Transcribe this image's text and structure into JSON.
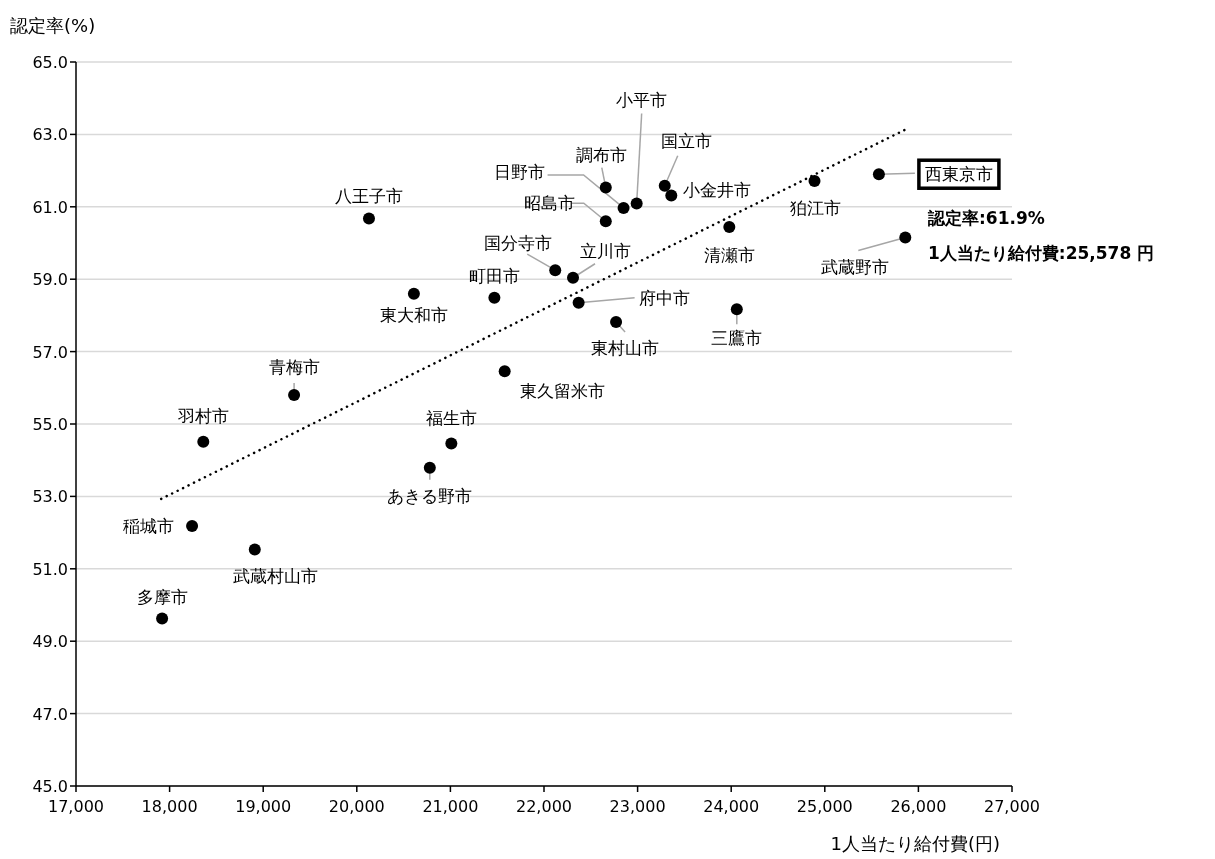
{
  "chart_data": {
    "type": "scatter",
    "xlabel": "1人当たり給付費(円)",
    "ylabel": "認定率(%)",
    "xlim": [
      17000,
      27000
    ],
    "ylim": [
      45,
      65
    ],
    "xticks": [
      {
        "value": 17000,
        "label": "17,000"
      },
      {
        "value": 18000,
        "label": "18,000"
      },
      {
        "value": 19000,
        "label": "19,000"
      },
      {
        "value": 20000,
        "label": "20,000"
      },
      {
        "value": 21000,
        "label": "21,000"
      },
      {
        "value": 22000,
        "label": "22,000"
      },
      {
        "value": 23000,
        "label": "23,000"
      },
      {
        "value": 24000,
        "label": "24,000"
      },
      {
        "value": 25000,
        "label": "25,000"
      },
      {
        "value": 26000,
        "label": "26,000"
      },
      {
        "value": 27000,
        "label": "27,000"
      }
    ],
    "yticks": [
      {
        "value": 45,
        "label": "45.0"
      },
      {
        "value": 47,
        "label": "47.0"
      },
      {
        "value": 49,
        "label": "49.0"
      },
      {
        "value": 51,
        "label": "51.0"
      },
      {
        "value": 53,
        "label": "53.0"
      },
      {
        "value": 55,
        "label": "55.0"
      },
      {
        "value": 57,
        "label": "57.0"
      },
      {
        "value": 59,
        "label": "59.0"
      },
      {
        "value": 61,
        "label": "61.0"
      },
      {
        "value": 63,
        "label": "63.0"
      },
      {
        "value": 65,
        "label": "65.0"
      }
    ],
    "grid": "y",
    "marker": "circle",
    "x": [
      20130,
      20610,
      21470,
      19330,
      21580,
      18360,
      21010,
      20780,
      18240,
      18910,
      17920,
      22660,
      22850,
      22990,
      22660,
      23290,
      23360,
      22120,
      22310,
      22370,
      22770,
      23980,
      24060,
      24890,
      25578,
      25860
    ],
    "series": [
      {
        "color": "#000000",
        "values": [
          60.68,
          58.6,
          58.49,
          55.8,
          56.46,
          54.51,
          54.46,
          53.79,
          52.18,
          51.53,
          49.63,
          61.53,
          60.97,
          61.09,
          60.6,
          61.58,
          61.31,
          59.25,
          59.04,
          58.35,
          57.82,
          60.44,
          58.17,
          61.71,
          61.9,
          60.15
        ]
      },
      {
        "type": "line",
        "color": "#000000",
        "line_style": "dotted",
        "marker": "none",
        "x": [
          17910,
          25850
        ],
        "values": [
          52.93,
          63.12
        ]
      }
    ],
    "annotations": [
      {
        "text": "八王子市",
        "x": 20130,
        "y": 60.68
      },
      {
        "text": "東大和市",
        "x": 20610,
        "y": 58.6
      },
      {
        "text": "町田市",
        "x": 21470,
        "y": 58.49
      },
      {
        "text": "青梅市",
        "x": 19330,
        "y": 55.8
      },
      {
        "text": "東久留米市",
        "x": 21580,
        "y": 56.46
      },
      {
        "text": "羽村市",
        "x": 18360,
        "y": 54.51
      },
      {
        "text": "福生市",
        "x": 21010,
        "y": 54.46
      },
      {
        "text": "あきる野市",
        "x": 20780,
        "y": 53.79
      },
      {
        "text": "稲城市",
        "x": 18240,
        "y": 52.18
      },
      {
        "text": "武蔵村山市",
        "x": 18910,
        "y": 51.53
      },
      {
        "text": "多摩市",
        "x": 17920,
        "y": 49.63
      },
      {
        "text": "調布市",
        "x": 22660,
        "y": 61.53
      },
      {
        "text": "日野市",
        "x": 22850,
        "y": 60.97
      },
      {
        "text": "小平市",
        "x": 22990,
        "y": 61.09
      },
      {
        "text": "昭島市",
        "x": 22660,
        "y": 60.6
      },
      {
        "text": "国立市",
        "x": 23290,
        "y": 61.58
      },
      {
        "text": "小金井市",
        "x": 23360,
        "y": 61.31
      },
      {
        "text": "国分寺市",
        "x": 22120,
        "y": 59.25
      },
      {
        "text": "立川市",
        "x": 22310,
        "y": 59.04
      },
      {
        "text": "府中市",
        "x": 22370,
        "y": 58.35
      },
      {
        "text": "東村山市",
        "x": 22770,
        "y": 57.82
      },
      {
        "text": "清瀬市",
        "x": 23980,
        "y": 60.44
      },
      {
        "text": "三鷹市",
        "x": 24060,
        "y": 58.17
      },
      {
        "text": "狛江市",
        "x": 24890,
        "y": 61.71
      },
      {
        "text": "西東京市",
        "x": 25578,
        "y": 61.9
      },
      {
        "text": "武蔵野市",
        "x": 25860,
        "y": 60.15
      },
      "認定率:61.9%",
      "1人当たり給付費:25,578 円"
    ]
  }
}
